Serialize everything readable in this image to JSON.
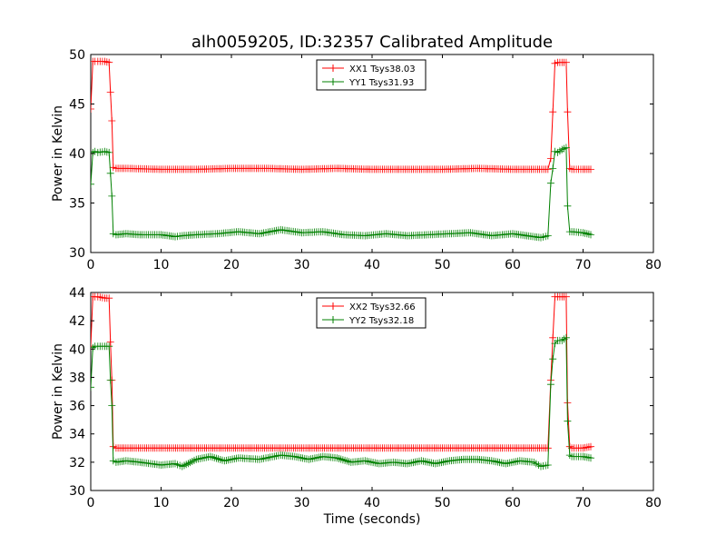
{
  "figure": {
    "title": "alh0059205, ID:32357 Calibrated Amplitude"
  },
  "chart_data": [
    {
      "type": "line",
      "title": "alh0059205, ID:32357 Calibrated Amplitude",
      "xlabel": "",
      "ylabel": "Power in Kelvin",
      "xlim": [
        0,
        80
      ],
      "ylim": [
        30,
        50
      ],
      "xticks": [
        "0",
        "10",
        "20",
        "30",
        "40",
        "50",
        "60",
        "70",
        "80"
      ],
      "yticks": [
        "30",
        "35",
        "40",
        "45",
        "50"
      ],
      "legend_placement": "top-center",
      "grid": false,
      "series": [
        {
          "name": "XX1 Tsys38.03",
          "color": "#ff0000",
          "x": [
            0,
            0.3,
            0.6,
            1,
            2,
            2.6,
            2.8,
            3.0,
            3.2,
            3.6,
            5,
            10,
            15,
            20,
            25,
            30,
            35,
            40,
            45,
            50,
            55,
            60,
            65,
            65.4,
            65.7,
            66,
            66.4,
            67,
            67.6,
            67.8,
            68.1,
            68.4,
            70,
            71.1
          ],
          "y": [
            44.5,
            49.3,
            49.3,
            49.3,
            49.3,
            49.2,
            46.2,
            43.3,
            38.6,
            38.5,
            38.5,
            38.4,
            38.4,
            38.5,
            38.5,
            38.4,
            38.5,
            38.4,
            38.4,
            38.4,
            38.5,
            38.4,
            38.4,
            39.5,
            44.2,
            49.1,
            49.2,
            49.2,
            49.2,
            44.2,
            38.5,
            38.4,
            38.4,
            38.4
          ]
        },
        {
          "name": "YY1 Tsys31.93",
          "color": "#008000",
          "x": [
            0,
            0.3,
            0.6,
            1,
            2,
            2.6,
            2.8,
            3.0,
            3.2,
            3.6,
            5,
            7,
            10,
            12,
            13,
            15,
            18,
            21,
            24,
            27,
            30,
            33,
            36,
            39,
            42,
            45,
            48,
            51,
            54,
            57,
            60,
            62,
            64,
            65,
            65.4,
            65.7,
            66,
            66.4,
            67,
            67.6,
            67.8,
            68.1,
            68.4,
            70,
            71.1
          ],
          "y": [
            36.9,
            40.1,
            40.2,
            40.1,
            40.2,
            40.1,
            38.0,
            35.7,
            31.9,
            31.8,
            31.9,
            31.8,
            31.8,
            31.6,
            31.7,
            31.8,
            31.9,
            32.1,
            31.9,
            32.3,
            32.0,
            32.1,
            31.8,
            31.7,
            31.9,
            31.7,
            31.8,
            31.9,
            32.0,
            31.7,
            31.9,
            31.7,
            31.5,
            31.7,
            37.0,
            38.5,
            40.2,
            40.1,
            40.4,
            40.6,
            34.7,
            32.1,
            32.1,
            32.0,
            31.8
          ]
        }
      ]
    },
    {
      "type": "line",
      "title": "",
      "xlabel": "Time (seconds)",
      "ylabel": "Power in Kelvin",
      "xlim": [
        0,
        80
      ],
      "ylim": [
        30,
        44
      ],
      "xticks": [
        "0",
        "10",
        "20",
        "30",
        "40",
        "50",
        "60",
        "70",
        "80"
      ],
      "yticks": [
        "30",
        "32",
        "34",
        "36",
        "38",
        "40",
        "42",
        "44"
      ],
      "legend_placement": "top-center",
      "grid": false,
      "series": [
        {
          "name": "XX2 Tsys32.66",
          "color": "#ff0000",
          "x": [
            0,
            0.3,
            0.6,
            1,
            2,
            2.6,
            2.8,
            3.0,
            3.2,
            3.6,
            5,
            10,
            15,
            20,
            25,
            30,
            35,
            40,
            45,
            50,
            55,
            60,
            65,
            65.4,
            65.7,
            66,
            66.4,
            67,
            67.6,
            67.8,
            68.1,
            68.4,
            70,
            71.1
          ],
          "y": [
            40.2,
            43.7,
            43.7,
            43.7,
            43.6,
            43.6,
            40.5,
            37.8,
            33.1,
            33.0,
            33.0,
            33.0,
            33.0,
            33.0,
            33.0,
            33.0,
            33.0,
            33.0,
            33.0,
            33.0,
            33.0,
            33.0,
            33.0,
            37.8,
            40.8,
            43.7,
            43.7,
            43.7,
            43.7,
            36.2,
            33.1,
            33.0,
            33.0,
            33.1
          ]
        },
        {
          "name": "YY2 Tsys32.18",
          "color": "#008000",
          "x": [
            0,
            0.3,
            0.6,
            1,
            2,
            2.6,
            2.8,
            3.0,
            3.2,
            3.6,
            5,
            7,
            10,
            12,
            13,
            15,
            17,
            19,
            21,
            24,
            27,
            29,
            31,
            33,
            35,
            37,
            39,
            41,
            43,
            45,
            47,
            49,
            51,
            53,
            55,
            57,
            59,
            61,
            63,
            64,
            65,
            65.4,
            65.7,
            66,
            66.4,
            67,
            67.6,
            67.8,
            68.1,
            68.4,
            70,
            71.1
          ],
          "y": [
            37.3,
            40.1,
            40.2,
            40.2,
            40.2,
            40.2,
            37.8,
            36.0,
            32.1,
            32.0,
            32.1,
            32.0,
            31.8,
            31.9,
            31.7,
            32.2,
            32.4,
            32.1,
            32.3,
            32.2,
            32.5,
            32.4,
            32.2,
            32.4,
            32.3,
            32.0,
            32.1,
            31.9,
            32.0,
            31.9,
            32.1,
            31.9,
            32.1,
            32.2,
            32.2,
            32.1,
            31.9,
            32.1,
            32.0,
            31.7,
            31.8,
            37.5,
            39.3,
            40.4,
            40.6,
            40.6,
            40.8,
            34.9,
            32.5,
            32.4,
            32.4,
            32.3
          ]
        }
      ]
    }
  ]
}
